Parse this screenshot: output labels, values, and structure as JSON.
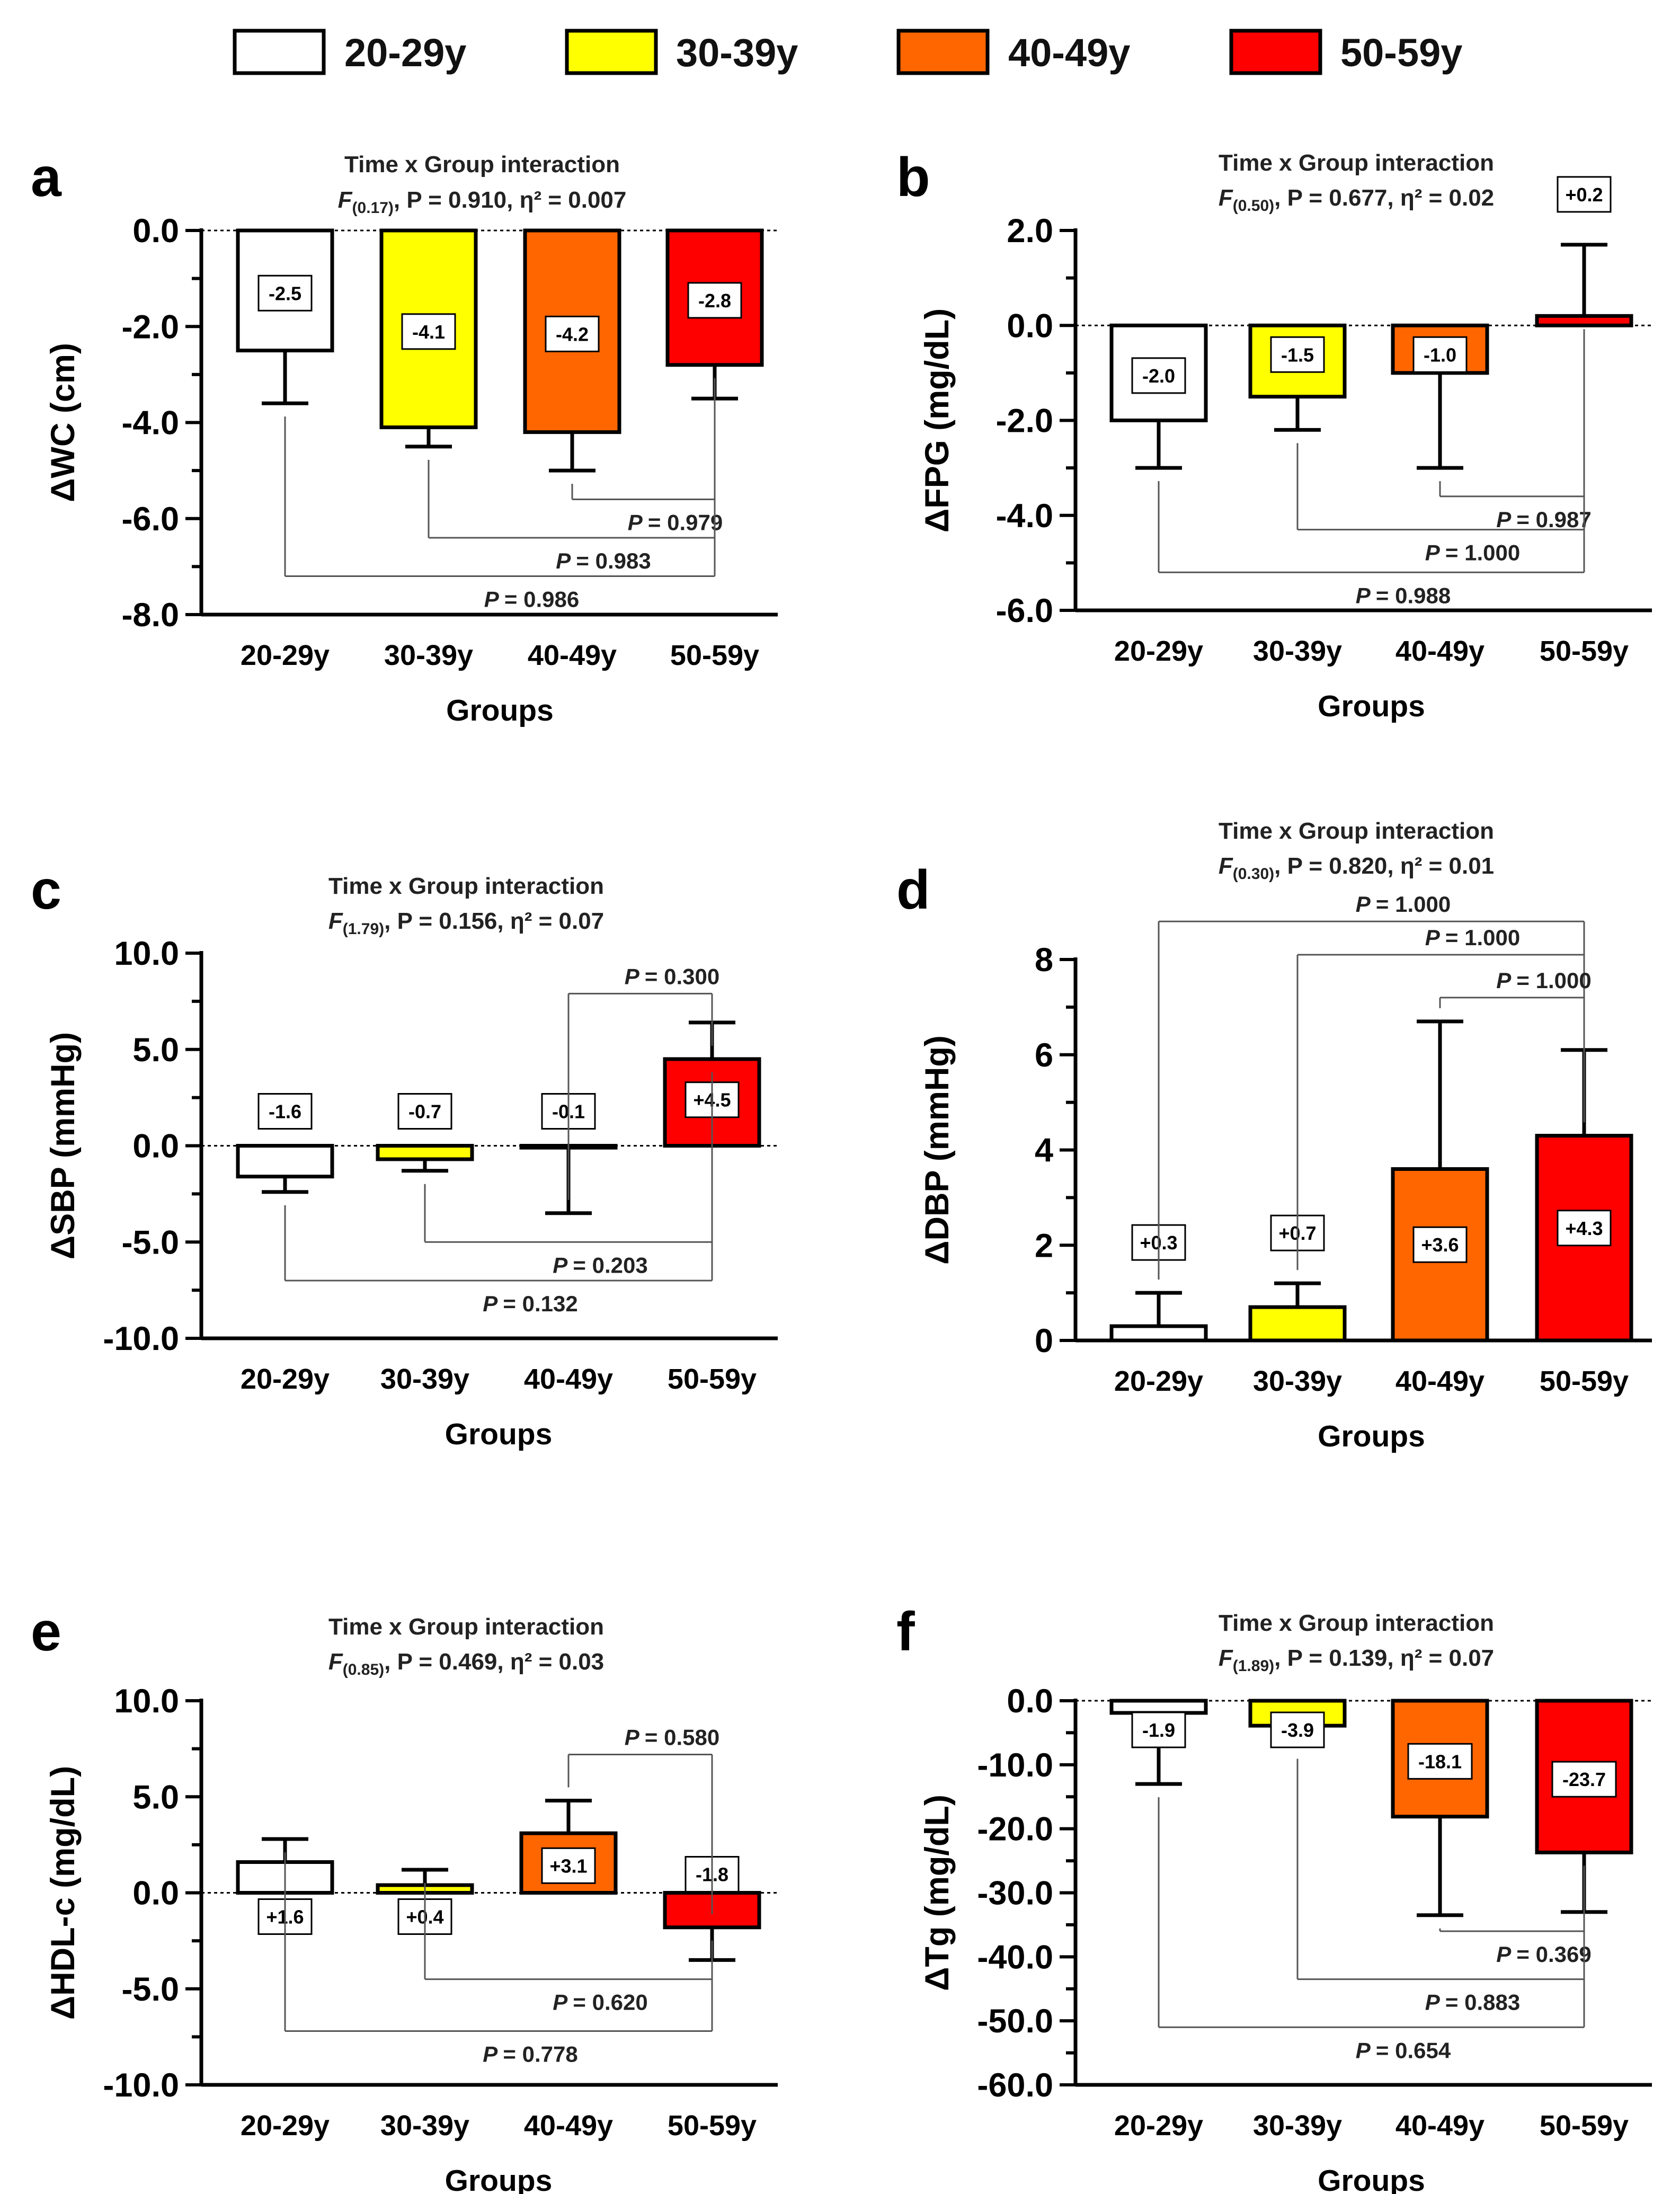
{
  "legend": [
    {
      "label": "20-29y",
      "color": "#FFFFFF"
    },
    {
      "label": "30-39y",
      "color": "#FFFF00"
    },
    {
      "label": "40-49y",
      "color": "#FF6600"
    },
    {
      "label": "50-59y",
      "color": "#FF0000"
    }
  ],
  "chart_data": [
    {
      "panel": "a",
      "type": "bar",
      "title": "Time x Group interaction",
      "stat_f": "F",
      "stat_sub": "(0.17)",
      "stat_rest": ", P = 0.910, η² = 0.007",
      "categories": [
        "20-29y",
        "30-39y",
        "40-49y",
        "50-59y"
      ],
      "values": [
        -2.5,
        -4.1,
        -4.2,
        -2.8
      ],
      "value_labels": [
        "-2.5",
        "-4.1",
        "-4.2",
        "-2.8"
      ],
      "error_tips": [
        -3.6,
        -4.5,
        -5.0,
        -3.5
      ],
      "xlabel": "Groups",
      "ylabel": "ΔWC (cm)",
      "ylim": [
        -8.0,
        0.0
      ],
      "yticks": [
        0,
        -2,
        -4,
        -6,
        -8
      ],
      "ytick_labels": [
        "0.0",
        "-2.0",
        "-4.0",
        "-6.0",
        "-8.0"
      ],
      "comparisons": [
        {
          "from": 2,
          "to": 3,
          "label": "= 0.979",
          "y": -5.6
        },
        {
          "from": 1,
          "to": 3,
          "label": "= 0.983",
          "y": -6.4
        },
        {
          "from": 0,
          "to": 3,
          "label": "= 0.986",
          "y": -7.2
        }
      ]
    },
    {
      "panel": "b",
      "type": "bar",
      "title": "Time x Group interaction",
      "stat_f": "F",
      "stat_sub": "(0.50)",
      "stat_rest": ", P = 0.677, η² = 0.02",
      "categories": [
        "20-29y",
        "30-39y",
        "40-49y",
        "50-59y"
      ],
      "values": [
        -2.0,
        -1.5,
        -1.0,
        0.2
      ],
      "value_labels": [
        "-2.0",
        "-1.5",
        "-1.0",
        "+0.2"
      ],
      "error_tips": [
        -3.0,
        -2.2,
        -3.0,
        1.7
      ],
      "xlabel": "Groups",
      "ylabel": "ΔFPG (mg/dL)",
      "ylim": [
        -6.0,
        2.0
      ],
      "yticks": [
        2,
        0,
        -2,
        -4,
        -6
      ],
      "ytick_labels": [
        "2.0",
        "0.0",
        "-2.0",
        "-4.0",
        "-6.0"
      ],
      "comparisons": [
        {
          "from": 2,
          "to": 3,
          "label": "= 0.987",
          "y": -3.6
        },
        {
          "from": 1,
          "to": 3,
          "label": "= 1.000",
          "y": -4.3
        },
        {
          "from": 0,
          "to": 3,
          "label": "= 0.988",
          "y": -5.2
        }
      ]
    },
    {
      "panel": "c",
      "type": "bar",
      "title": "Time x Group interaction",
      "stat_f": "F",
      "stat_sub": "(1.79)",
      "stat_rest": ", P = 0.156, η² = 0.07",
      "categories": [
        "20-29y",
        "30-39y",
        "40-49y",
        "50-59y"
      ],
      "values": [
        -1.6,
        -0.7,
        -0.1,
        4.5
      ],
      "value_labels": [
        "-1.6",
        "-0.7",
        "-0.1",
        "+4.5"
      ],
      "error_tips": [
        -2.4,
        -1.3,
        -3.5,
        6.4
      ],
      "xlabel": "Groups",
      "ylabel": "ΔSBP (mmHg)",
      "ylim": [
        -10.0,
        10.0
      ],
      "yticks": [
        10,
        5,
        0,
        -5,
        -10
      ],
      "ytick_labels": [
        "10.0",
        "5.0",
        "0.0",
        "-5.0",
        "-10.0"
      ],
      "comparisons": [
        {
          "from": 2,
          "to": 3,
          "label": "= 0.300",
          "y": 7.9
        },
        {
          "from": 1,
          "to": 3,
          "label": "= 0.203",
          "y": -5.0
        },
        {
          "from": 0,
          "to": 3,
          "label": "= 0.132",
          "y": -7.0
        }
      ]
    },
    {
      "panel": "d",
      "type": "bar",
      "title": "Time x Group interaction",
      "stat_f": "F",
      "stat_sub": "(0.30)",
      "stat_rest": ", P = 0.820, η² = 0.01",
      "categories": [
        "20-29y",
        "30-39y",
        "40-49y",
        "50-59y"
      ],
      "values": [
        0.3,
        0.7,
        3.6,
        4.3
      ],
      "value_labels": [
        "+0.3",
        "+0.7",
        "+3.6",
        "+4.3"
      ],
      "error_tips": [
        1.0,
        1.2,
        6.7,
        6.1
      ],
      "xlabel": "Groups",
      "ylabel": "ΔDBP (mmHg)",
      "ylim": [
        0,
        8
      ],
      "yticks": [
        8,
        6,
        4,
        2,
        0
      ],
      "ytick_labels": [
        "8",
        "6",
        "4",
        "2",
        "0"
      ],
      "comparisons": [
        {
          "from": 0,
          "to": 3,
          "label": "= 1.000",
          "y": 8.8
        },
        {
          "from": 1,
          "to": 3,
          "label": "= 1.000",
          "y": 8.1
        },
        {
          "from": 2,
          "to": 3,
          "label": "= 1.000",
          "y": 7.2
        }
      ]
    },
    {
      "panel": "e",
      "type": "bar",
      "title": "Time x Group interaction",
      "stat_f": "F",
      "stat_sub": "(0.85)",
      "stat_rest": ", P = 0.469, η² = 0.03",
      "categories": [
        "20-29y",
        "30-39y",
        "40-49y",
        "50-59y"
      ],
      "values": [
        1.6,
        0.4,
        3.1,
        -1.8
      ],
      "value_labels": [
        "+1.6",
        "+0.4",
        "+3.1",
        "-1.8"
      ],
      "error_tips": [
        2.8,
        1.2,
        4.8,
        -3.5
      ],
      "xlabel": "Groups",
      "ylabel": "ΔHDL-c (mg/dL)",
      "ylim": [
        -10.0,
        10.0
      ],
      "yticks": [
        10,
        5,
        0,
        -5,
        -10
      ],
      "ytick_labels": [
        "10.0",
        "5.0",
        "0.0",
        "-5.0",
        "-10.0"
      ],
      "comparisons": [
        {
          "from": 2,
          "to": 3,
          "label": "= 0.580",
          "y": 7.2
        },
        {
          "from": 1,
          "to": 3,
          "label": "= 0.620",
          "y": -4.5
        },
        {
          "from": 0,
          "to": 3,
          "label": "= 0.778",
          "y": -7.2
        }
      ]
    },
    {
      "panel": "f",
      "type": "bar",
      "title": "Time x Group interaction",
      "stat_f": "F",
      "stat_sub": "(1.89)",
      "stat_rest": ", P = 0.139, η² = 0.07",
      "categories": [
        "20-29y",
        "30-39y",
        "40-49y",
        "50-59y"
      ],
      "values": [
        -1.9,
        -3.9,
        -18.1,
        -23.7
      ],
      "value_labels": [
        "-1.9",
        "-3.9",
        "-18.1",
        "-23.7"
      ],
      "error_tips": [
        -13.0,
        -7.0,
        -33.5,
        -33.0
      ],
      "xlabel": "Groups",
      "ylabel": "ΔTg (mg/dL)",
      "ylim": [
        -60.0,
        0.0
      ],
      "yticks": [
        0,
        -10,
        -20,
        -30,
        -40,
        -50,
        -60
      ],
      "ytick_labels": [
        "0.0",
        "-10.0",
        "-20.0",
        "-30.0",
        "-40.0",
        "-50.0",
        "-60.0"
      ],
      "comparisons": [
        {
          "from": 2,
          "to": 3,
          "label": "= 0.369",
          "y": -36.0
        },
        {
          "from": 1,
          "to": 3,
          "label": "= 0.883",
          "y": -43.5
        },
        {
          "from": 0,
          "to": 3,
          "label": "= 0.654",
          "y": -51.0
        }
      ]
    }
  ]
}
